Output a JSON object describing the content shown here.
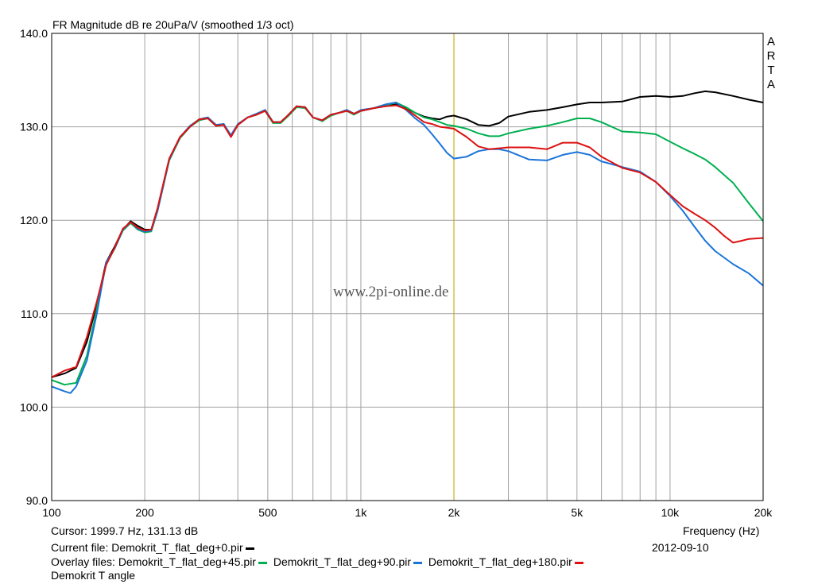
{
  "chart_data": {
    "type": "line",
    "title": "FR Magnitude dB re 20uPa/V (smoothed 1/3 oct)",
    "xlabel": "Frequency (Hz)",
    "ylabel": "",
    "xscale": "log",
    "xlim": [
      100,
      20000
    ],
    "ylim": [
      90,
      140
    ],
    "grid": true,
    "x_ticks": [
      100,
      200,
      500,
      1000,
      2000,
      5000,
      10000,
      20000
    ],
    "x_tick_labels": [
      "100",
      "200",
      "500",
      "1k",
      "2k",
      "5k",
      "10k",
      "20k"
    ],
    "y_ticks": [
      90,
      100,
      110,
      120,
      130,
      140
    ],
    "y_tick_labels": [
      "90.0",
      "100.0",
      "110.0",
      "120.0",
      "130.0",
      "140.0"
    ],
    "cursor_x": 1999.7,
    "series": [
      {
        "name": "Demokrit_T_flat_deg+0.pir",
        "color": "#000000",
        "points": [
          [
            100,
            103.2
          ],
          [
            110,
            103.6
          ],
          [
            120,
            104.2
          ],
          [
            130,
            107
          ],
          [
            140,
            111
          ],
          [
            150,
            115.5
          ],
          [
            160,
            117.2
          ],
          [
            170,
            119
          ],
          [
            180,
            119.9
          ],
          [
            190,
            119.4
          ],
          [
            200,
            119
          ],
          [
            210,
            119
          ],
          [
            220,
            121.2
          ],
          [
            240,
            126.5
          ],
          [
            260,
            128.8
          ],
          [
            280,
            130
          ],
          [
            300,
            130.8
          ],
          [
            320,
            131
          ],
          [
            340,
            130.2
          ],
          [
            360,
            130.3
          ],
          [
            380,
            129
          ],
          [
            400,
            130.2
          ],
          [
            430,
            131
          ],
          [
            460,
            131.3
          ],
          [
            490,
            131.8
          ],
          [
            520,
            130.5
          ],
          [
            550,
            130.5
          ],
          [
            580,
            131.2
          ],
          [
            620,
            132.2
          ],
          [
            660,
            132.1
          ],
          [
            700,
            131
          ],
          [
            750,
            130.7
          ],
          [
            800,
            131.3
          ],
          [
            850,
            131.5
          ],
          [
            900,
            131.8
          ],
          [
            950,
            131.4
          ],
          [
            1000,
            131.7
          ],
          [
            1100,
            132
          ],
          [
            1200,
            132.2
          ],
          [
            1300,
            132.4
          ],
          [
            1400,
            132
          ],
          [
            1500,
            131.5
          ],
          [
            1600,
            131.1
          ],
          [
            1700,
            130.9
          ],
          [
            1800,
            130.8
          ],
          [
            1900,
            131.1
          ],
          [
            2000,
            131.2
          ],
          [
            2200,
            130.8
          ],
          [
            2400,
            130.2
          ],
          [
            2600,
            130.1
          ],
          [
            2800,
            130.4
          ],
          [
            3000,
            131.1
          ],
          [
            3500,
            131.6
          ],
          [
            4000,
            131.8
          ],
          [
            4500,
            132.1
          ],
          [
            5000,
            132.4
          ],
          [
            5500,
            132.6
          ],
          [
            6000,
            132.6
          ],
          [
            7000,
            132.7
          ],
          [
            8000,
            133.2
          ],
          [
            9000,
            133.3
          ],
          [
            10000,
            133.2
          ],
          [
            11000,
            133.3
          ],
          [
            12000,
            133.6
          ],
          [
            13000,
            133.8
          ],
          [
            14000,
            133.7
          ],
          [
            16000,
            133.3
          ],
          [
            18000,
            132.9
          ],
          [
            20000,
            132.6
          ]
        ]
      },
      {
        "name": "Demokrit_T_flat_deg+45.pir",
        "color": "#00b050",
        "points": [
          [
            100,
            102.9
          ],
          [
            110,
            102.4
          ],
          [
            120,
            102.6
          ],
          [
            130,
            105.5
          ],
          [
            140,
            110.5
          ],
          [
            150,
            115.3
          ],
          [
            160,
            117
          ],
          [
            170,
            118.9
          ],
          [
            180,
            119.7
          ],
          [
            190,
            119
          ],
          [
            200,
            118.7
          ],
          [
            210,
            118.8
          ],
          [
            220,
            121
          ],
          [
            240,
            126.4
          ],
          [
            260,
            128.8
          ],
          [
            280,
            130
          ],
          [
            300,
            130.7
          ],
          [
            320,
            130.9
          ],
          [
            340,
            130.1
          ],
          [
            360,
            130.2
          ],
          [
            380,
            129
          ],
          [
            400,
            130.2
          ],
          [
            430,
            131
          ],
          [
            460,
            131.3
          ],
          [
            490,
            131.7
          ],
          [
            520,
            130.4
          ],
          [
            550,
            130.4
          ],
          [
            580,
            131.1
          ],
          [
            620,
            132.1
          ],
          [
            660,
            132
          ],
          [
            700,
            131
          ],
          [
            750,
            130.6
          ],
          [
            800,
            131.2
          ],
          [
            850,
            131.5
          ],
          [
            900,
            131.7
          ],
          [
            950,
            131.3
          ],
          [
            1000,
            131.7
          ],
          [
            1100,
            132
          ],
          [
            1200,
            132.3
          ],
          [
            1300,
            132.6
          ],
          [
            1400,
            132.1
          ],
          [
            1500,
            131.5
          ],
          [
            1600,
            131
          ],
          [
            1700,
            130.8
          ],
          [
            1800,
            130.5
          ],
          [
            1900,
            130.2
          ],
          [
            2000,
            130.1
          ],
          [
            2200,
            129.8
          ],
          [
            2400,
            129.3
          ],
          [
            2600,
            129
          ],
          [
            2800,
            129
          ],
          [
            3000,
            129.3
          ],
          [
            3500,
            129.8
          ],
          [
            4000,
            130.1
          ],
          [
            4500,
            130.5
          ],
          [
            5000,
            130.9
          ],
          [
            5500,
            130.9
          ],
          [
            6000,
            130.5
          ],
          [
            7000,
            129.5
          ],
          [
            8000,
            129.4
          ],
          [
            9000,
            129.2
          ],
          [
            10000,
            128.4
          ],
          [
            11000,
            127.7
          ],
          [
            12000,
            127.1
          ],
          [
            13000,
            126.5
          ],
          [
            14000,
            125.7
          ],
          [
            16000,
            124
          ],
          [
            18000,
            121.8
          ],
          [
            20000,
            119.9
          ]
        ]
      },
      {
        "name": "Demokrit_T_flat_deg+90.pir",
        "color": "#1a75d9",
        "points": [
          [
            100,
            102.2
          ],
          [
            110,
            101.7
          ],
          [
            115,
            101.5
          ],
          [
            120,
            102.2
          ],
          [
            130,
            105
          ],
          [
            140,
            110
          ],
          [
            150,
            115.5
          ],
          [
            160,
            117
          ],
          [
            170,
            119
          ],
          [
            180,
            119.8
          ],
          [
            190,
            119.1
          ],
          [
            200,
            118.8
          ],
          [
            210,
            118.9
          ],
          [
            220,
            121
          ],
          [
            240,
            126.5
          ],
          [
            260,
            128.9
          ],
          [
            280,
            130.1
          ],
          [
            300,
            130.8
          ],
          [
            320,
            131
          ],
          [
            340,
            130.2
          ],
          [
            360,
            130.3
          ],
          [
            380,
            129.1
          ],
          [
            400,
            130.3
          ],
          [
            430,
            131
          ],
          [
            460,
            131.4
          ],
          [
            490,
            131.8
          ],
          [
            520,
            130.5
          ],
          [
            550,
            130.5
          ],
          [
            580,
            131.2
          ],
          [
            620,
            132.2
          ],
          [
            660,
            132.1
          ],
          [
            700,
            131
          ],
          [
            750,
            130.7
          ],
          [
            800,
            131.3
          ],
          [
            850,
            131.5
          ],
          [
            900,
            131.8
          ],
          [
            950,
            131.4
          ],
          [
            1000,
            131.8
          ],
          [
            1100,
            132
          ],
          [
            1200,
            132.4
          ],
          [
            1300,
            132.6
          ],
          [
            1400,
            131.8
          ],
          [
            1500,
            130.9
          ],
          [
            1600,
            130.2
          ],
          [
            1700,
            129.2
          ],
          [
            1800,
            128.2
          ],
          [
            1900,
            127.2
          ],
          [
            2000,
            126.6
          ],
          [
            2200,
            126.8
          ],
          [
            2400,
            127.4
          ],
          [
            2600,
            127.6
          ],
          [
            2800,
            127.6
          ],
          [
            3000,
            127.4
          ],
          [
            3500,
            126.5
          ],
          [
            4000,
            126.4
          ],
          [
            4500,
            127
          ],
          [
            5000,
            127.3
          ],
          [
            5500,
            127
          ],
          [
            6000,
            126.3
          ],
          [
            7000,
            125.7
          ],
          [
            8000,
            125.2
          ],
          [
            9000,
            124.1
          ],
          [
            10000,
            122.6
          ],
          [
            11000,
            121
          ],
          [
            12000,
            119.3
          ],
          [
            13000,
            117.8
          ],
          [
            14000,
            116.7
          ],
          [
            16000,
            115.3
          ],
          [
            18000,
            114.3
          ],
          [
            20000,
            113
          ]
        ]
      },
      {
        "name": "Demokrit_T_flat_deg+180.pir",
        "color": "#dd1111",
        "points": [
          [
            100,
            103.2
          ],
          [
            110,
            103.9
          ],
          [
            120,
            104.3
          ],
          [
            130,
            107.5
          ],
          [
            140,
            111.3
          ],
          [
            150,
            115.2
          ],
          [
            160,
            117.1
          ],
          [
            170,
            119.1
          ],
          [
            180,
            119.8
          ],
          [
            190,
            119.2
          ],
          [
            200,
            118.9
          ],
          [
            210,
            119
          ],
          [
            220,
            121.3
          ],
          [
            240,
            126.6
          ],
          [
            260,
            128.9
          ],
          [
            280,
            130
          ],
          [
            300,
            130.8
          ],
          [
            320,
            130.9
          ],
          [
            340,
            130.1
          ],
          [
            360,
            130.2
          ],
          [
            380,
            128.9
          ],
          [
            400,
            130.2
          ],
          [
            430,
            131
          ],
          [
            460,
            131.3
          ],
          [
            490,
            131.7
          ],
          [
            520,
            130.5
          ],
          [
            550,
            130.5
          ],
          [
            580,
            131.2
          ],
          [
            620,
            132.2
          ],
          [
            660,
            132.1
          ],
          [
            700,
            131
          ],
          [
            750,
            130.7
          ],
          [
            800,
            131.3
          ],
          [
            850,
            131.5
          ],
          [
            900,
            131.7
          ],
          [
            950,
            131.4
          ],
          [
            1000,
            131.7
          ],
          [
            1100,
            132
          ],
          [
            1200,
            132.2
          ],
          [
            1300,
            132.3
          ],
          [
            1400,
            131.9
          ],
          [
            1500,
            131.2
          ],
          [
            1600,
            130.5
          ],
          [
            1700,
            130.3
          ],
          [
            1800,
            130
          ],
          [
            1900,
            129.9
          ],
          [
            2000,
            129.8
          ],
          [
            2200,
            128.9
          ],
          [
            2400,
            127.9
          ],
          [
            2600,
            127.6
          ],
          [
            2800,
            127.7
          ],
          [
            3000,
            127.8
          ],
          [
            3500,
            127.8
          ],
          [
            4000,
            127.6
          ],
          [
            4500,
            128.3
          ],
          [
            5000,
            128.3
          ],
          [
            5500,
            127.8
          ],
          [
            6000,
            126.8
          ],
          [
            7000,
            125.6
          ],
          [
            8000,
            125.1
          ],
          [
            9000,
            124.1
          ],
          [
            10000,
            122.7
          ],
          [
            11000,
            121.5
          ],
          [
            12000,
            120.7
          ],
          [
            13000,
            120
          ],
          [
            14000,
            119.2
          ],
          [
            15000,
            118.3
          ],
          [
            16000,
            117.6
          ],
          [
            17000,
            117.8
          ],
          [
            18000,
            118
          ],
          [
            20000,
            118.1
          ]
        ]
      }
    ]
  },
  "watermark": "www.2pi-online.de",
  "brand": [
    "A",
    "R",
    "T",
    "A"
  ],
  "cursor_label": "Cursor: 1999.7 Hz, 131.13 dB",
  "date": "2012-09-10",
  "current_file": "Current file: Demokrit_T_flat_deg+0.pir",
  "overlay_prefix": "Overlay files:",
  "overlay_files": [
    "Demokrit_T_flat_deg+45.pir",
    "Demokrit_T_flat_deg+90.pir",
    "Demokrit_T_flat_deg+180.pir"
  ],
  "description": "Demokrit T angle",
  "colors": {
    "grid": "#a0a0a0",
    "cursor": "#c8a400",
    "plot_border": "#000000"
  }
}
